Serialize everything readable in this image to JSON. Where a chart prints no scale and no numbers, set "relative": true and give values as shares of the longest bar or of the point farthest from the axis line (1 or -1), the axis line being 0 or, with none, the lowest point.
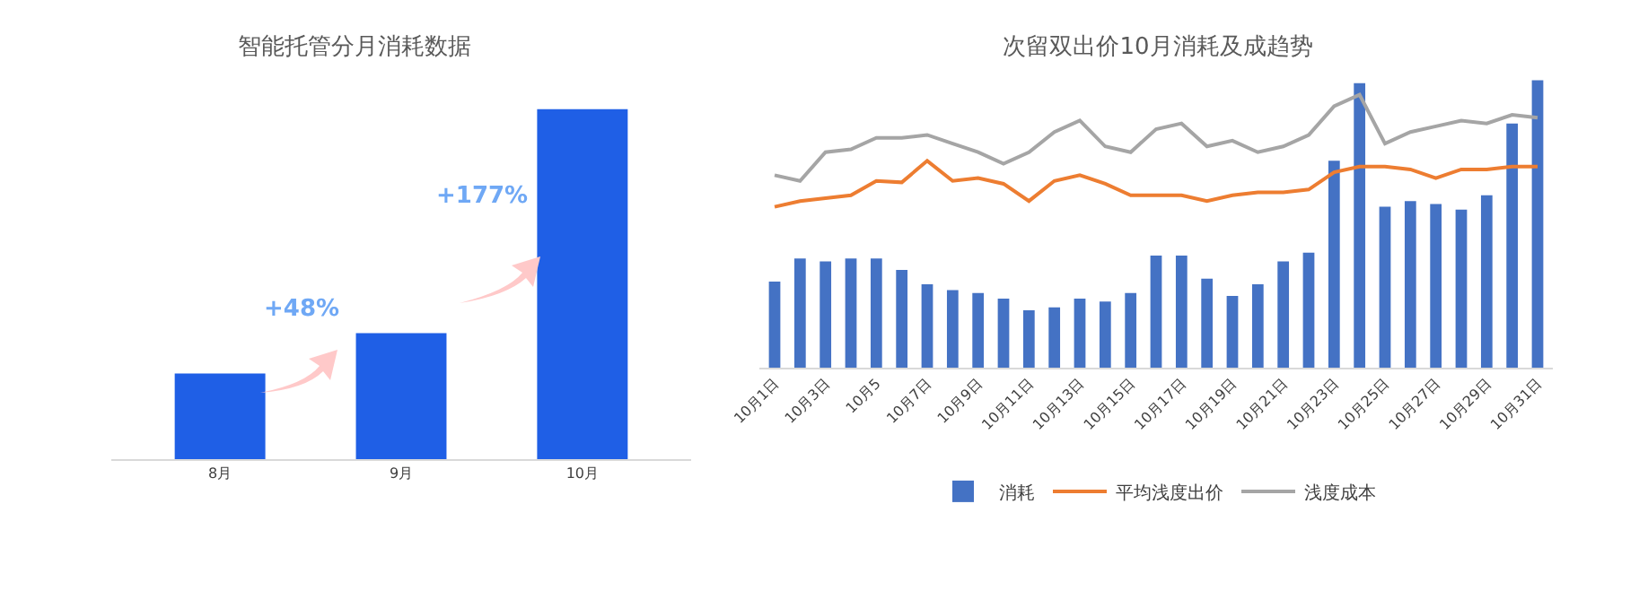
{
  "chart_data": [
    {
      "type": "bar",
      "title": "智能托管分月消耗数据",
      "relative": true,
      "categories": [
        "8月",
        "9月",
        "10月"
      ],
      "values": [
        0.245,
        0.36,
        1
      ],
      "color": "#1f5fe6",
      "annotations": [
        "+48%",
        "+177%"
      ],
      "grid": false,
      "legend": false
    },
    {
      "type": "bar",
      "title": "次留双出价10月消耗及成趋势",
      "relative": true,
      "grid": false,
      "legend": "bottom",
      "categories": [
        "10月1日",
        null,
        "10月3日",
        null,
        "10月5",
        null,
        "10月7日",
        null,
        "10月9日",
        null,
        "10月11日",
        null,
        "10月13日",
        null,
        "10月15日",
        null,
        "10月17日",
        null,
        "10月19日",
        null,
        "10月21日",
        null,
        "10月23日",
        null,
        "10月25日",
        null,
        "10月27日",
        null,
        "10月29日",
        null,
        "10月31日"
      ],
      "series": [
        {
          "name": "消耗",
          "type": "bar",
          "color": "#4472c4",
          "values": [
            0.3,
            0.38,
            0.37,
            0.38,
            0.38,
            0.34,
            0.29,
            0.27,
            0.26,
            0.24,
            0.2,
            0.21,
            0.24,
            0.23,
            0.26,
            0.39,
            0.39,
            0.31,
            0.25,
            0.29,
            0.37,
            0.4,
            0.72,
            0.99,
            0.56,
            0.58,
            0.57,
            0.55,
            0.6,
            0.85,
            1
          ]
        },
        {
          "name": "平均浅度出价",
          "type": "line",
          "color": "#ed7d31",
          "values": [
            0.56,
            0.58,
            0.59,
            0.6,
            0.65,
            0.645,
            0.72,
            0.65,
            0.66,
            0.64,
            0.58,
            0.65,
            0.67,
            0.64,
            0.6,
            0.6,
            0.6,
            0.58,
            0.6,
            0.61,
            0.61,
            0.62,
            0.68,
            0.7,
            0.7,
            0.69,
            0.66,
            0.69,
            0.69,
            0.7,
            0.7
          ]
        },
        {
          "name": "浅度成本",
          "type": "line",
          "color": "#a5a5a5",
          "values": [
            0.67,
            0.65,
            0.75,
            0.76,
            0.8,
            0.8,
            0.81,
            0.78,
            0.75,
            0.71,
            0.75,
            0.82,
            0.86,
            0.77,
            0.75,
            0.83,
            0.85,
            0.77,
            0.79,
            0.75,
            0.77,
            0.81,
            0.91,
            0.95,
            0.78,
            0.82,
            0.84,
            0.86,
            0.85,
            0.88,
            0.87
          ]
        }
      ]
    }
  ]
}
